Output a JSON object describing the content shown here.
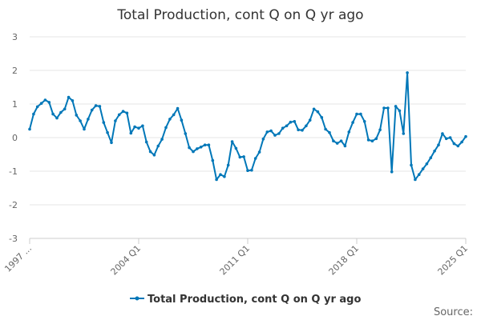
{
  "chart_data": {
    "type": "line",
    "title": "Total Production, cont Q on Q yr ago",
    "xlabel": "",
    "ylabel": "",
    "ylim": [
      -3,
      3
    ],
    "y_ticks": [
      3,
      2,
      1,
      0,
      -1,
      -2,
      -3
    ],
    "x_tick_labels": [
      "1997 ...",
      "2004 Q1",
      "2011 Q1",
      "2018 Q1",
      "2025 Q1"
    ],
    "x_tick_positions": [
      0,
      28,
      56,
      84,
      112
    ],
    "grid": true,
    "legend_position": "bottom",
    "color": "#0077b8",
    "series": [
      {
        "name": "Total Production, cont Q on Q yr ago",
        "values": [
          0.25,
          0.7,
          0.92,
          1.02,
          1.12,
          1.05,
          0.7,
          0.58,
          0.75,
          0.85,
          1.2,
          1.1,
          0.67,
          0.5,
          0.25,
          0.55,
          0.82,
          0.95,
          0.93,
          0.45,
          0.15,
          -0.15,
          0.5,
          0.68,
          0.78,
          0.73,
          0.13,
          0.32,
          0.28,
          0.35,
          -0.13,
          -0.42,
          -0.52,
          -0.25,
          -0.05,
          0.3,
          0.55,
          0.68,
          0.87,
          0.52,
          0.12,
          -0.3,
          -0.42,
          -0.33,
          -0.28,
          -0.22,
          -0.22,
          -0.68,
          -1.25,
          -1.1,
          -1.16,
          -0.82,
          -0.12,
          -0.32,
          -0.58,
          -0.57,
          -0.98,
          -0.97,
          -0.62,
          -0.43,
          -0.04,
          0.17,
          0.2,
          0.07,
          0.12,
          0.28,
          0.35,
          0.46,
          0.48,
          0.23,
          0.22,
          0.35,
          0.52,
          0.85,
          0.77,
          0.6,
          0.25,
          0.15,
          -0.1,
          -0.17,
          -0.1,
          -0.25,
          0.17,
          0.45,
          0.7,
          0.7,
          0.48,
          -0.07,
          -0.1,
          -0.03,
          0.23,
          0.88,
          0.88,
          -1.02,
          0.93,
          0.8,
          0.12,
          1.93,
          -0.82,
          -1.25,
          -1.1,
          -0.93,
          -0.78,
          -0.6,
          -0.4,
          -0.22,
          0.12,
          -0.03,
          0.0,
          -0.18,
          -0.25,
          -0.13,
          0.03
        ]
      }
    ]
  },
  "footer": {
    "source": "Source:"
  }
}
